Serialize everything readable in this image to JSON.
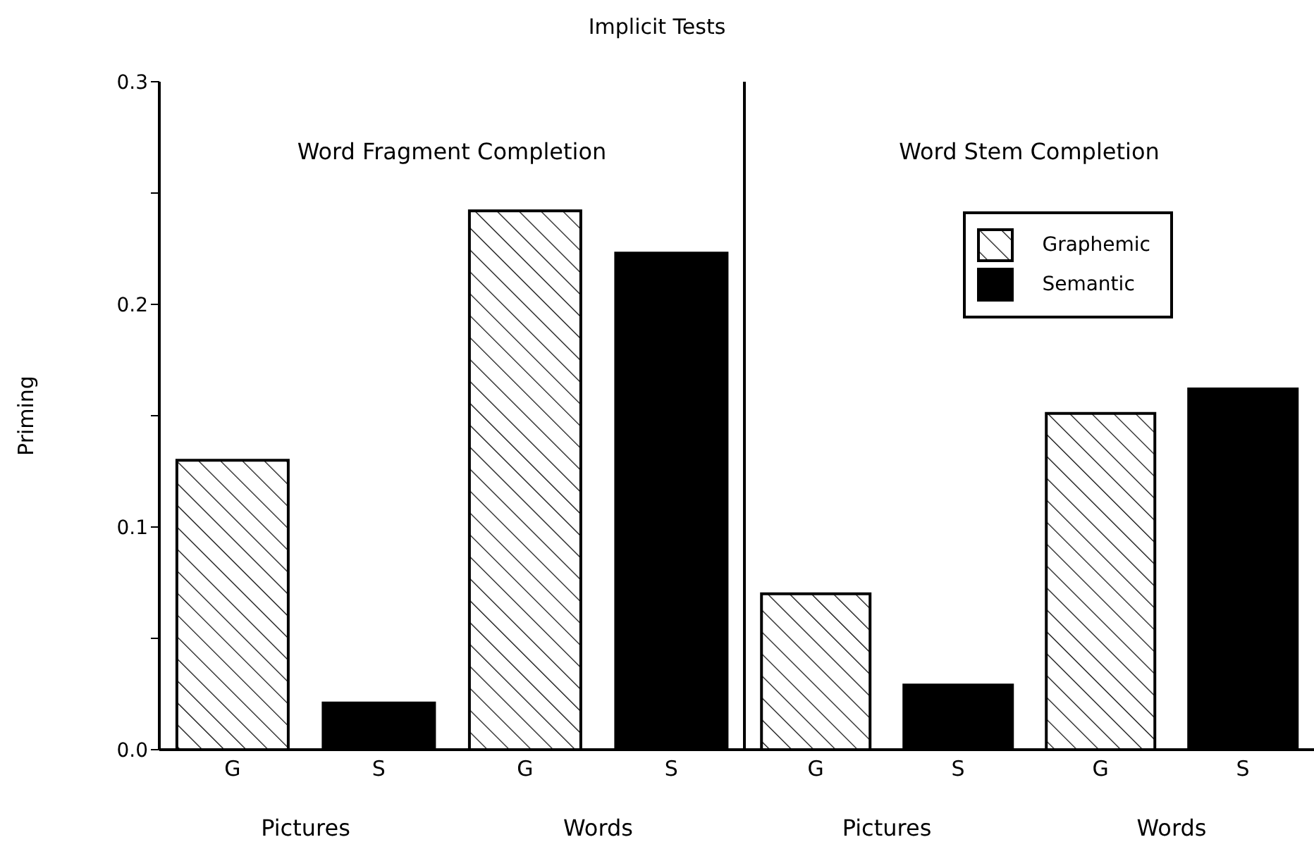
{
  "chart_data": [
    {
      "type": "bar",
      "title": "Implicit Tests",
      "subtitle": "Word Fragment Completion",
      "ylabel": "Priming",
      "categories": [
        "G",
        "S",
        "G",
        "S"
      ],
      "series": [
        {
          "color": "#000000",
          "values": [
            0.13,
            null,
            0.242,
            null
          ]
        },
        {
          "color": "#000000",
          "values": [
            null,
            0.021,
            null,
            0.223
          ]
        }
      ],
      "annotations": [
        "Pictures",
        "Words"
      ],
      "ylim": [
        0,
        0.3
      ],
      "yticks": [
        {
          "value": 0,
          "label": "0.0"
        },
        {
          "value": 0.05,
          "label": null
        },
        0.1,
        {
          "value": 0.15,
          "label": null
        },
        0.2,
        {
          "value": 0.25,
          "label": null
        },
        0.3
      ]
    },
    {
      "type": "bar",
      "subtitle": "Word Stem Completion",
      "categories": [
        "G",
        "S",
        "G",
        "S"
      ],
      "series": [
        {
          "name": "Graphemic",
          "color": "#000000",
          "values": [
            0.07,
            null,
            0.151,
            null
          ]
        },
        {
          "name": "Semantic",
          "color": "#000000",
          "values": [
            null,
            0.029,
            null,
            0.162
          ]
        }
      ],
      "annotations": [
        "Pictures",
        "Words"
      ],
      "ylim": [
        0,
        0.3
      ],
      "tick_labels": "x",
      "legend": "top right"
    }
  ]
}
